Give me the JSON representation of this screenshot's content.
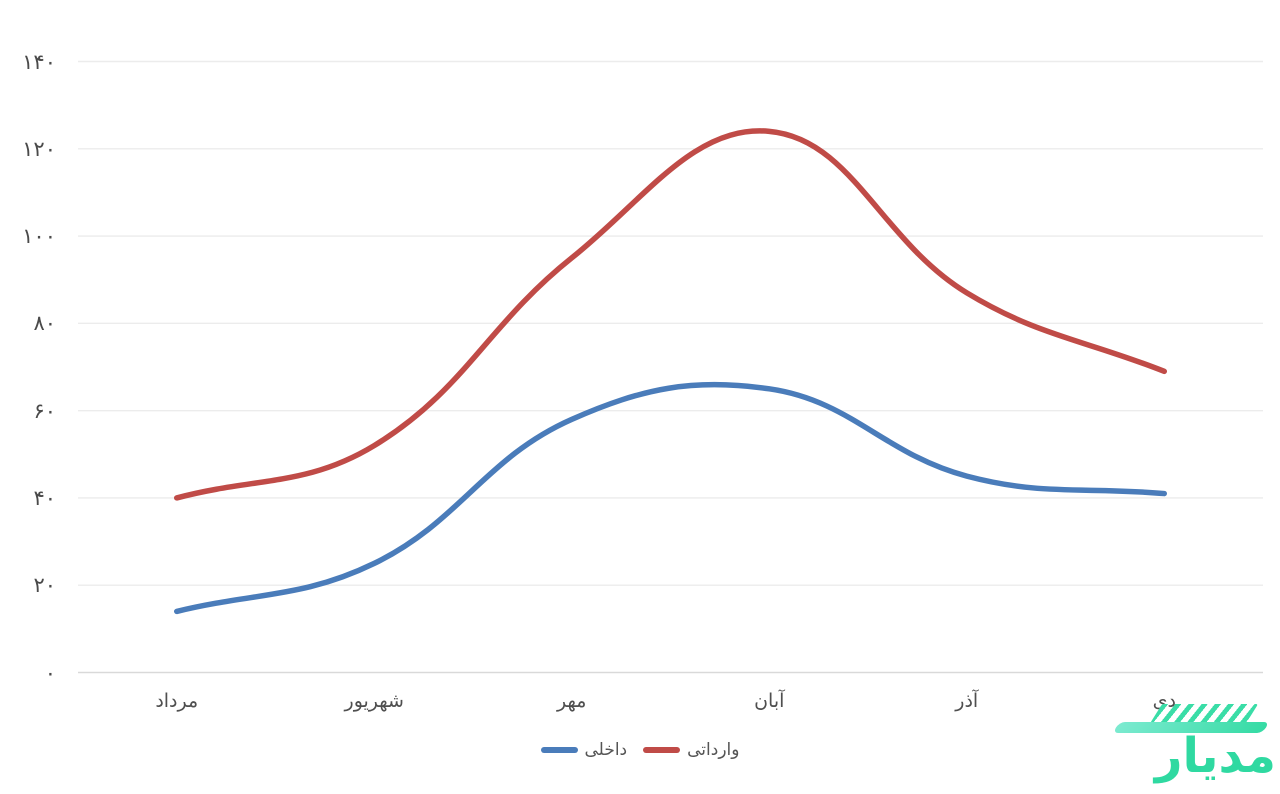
{
  "chart_data": {
    "type": "line",
    "categories": [
      "مرداد",
      "شهریور",
      "مهر",
      "آبان",
      "آذر",
      "دی"
    ],
    "series": [
      {
        "name": "داخلی",
        "color": "#4a7cba",
        "values": [
          14,
          25,
          58,
          65,
          45,
          41
        ]
      },
      {
        "name": "وارداتی",
        "color": "#c04b47",
        "values": [
          40,
          52,
          95,
          124,
          87,
          69
        ]
      }
    ],
    "title": "",
    "xlabel": "",
    "ylabel": "",
    "y_axis": {
      "min": 0,
      "max": 140,
      "step": 20,
      "tick_labels": [
        "۰",
        "۲۰",
        "۴۰",
        "۶۰",
        "۸۰",
        "۱۰۰",
        "۱۲۰",
        "۱۴۰"
      ]
    },
    "grid": true,
    "legend_position": "bottom",
    "line_tension": 0.4,
    "line_width": 5.5,
    "grid_color": "#ececec",
    "axis_line_color": "#d9d9d9"
  },
  "watermark": {
    "text": "مدیار",
    "color": "#2fd9a1"
  }
}
